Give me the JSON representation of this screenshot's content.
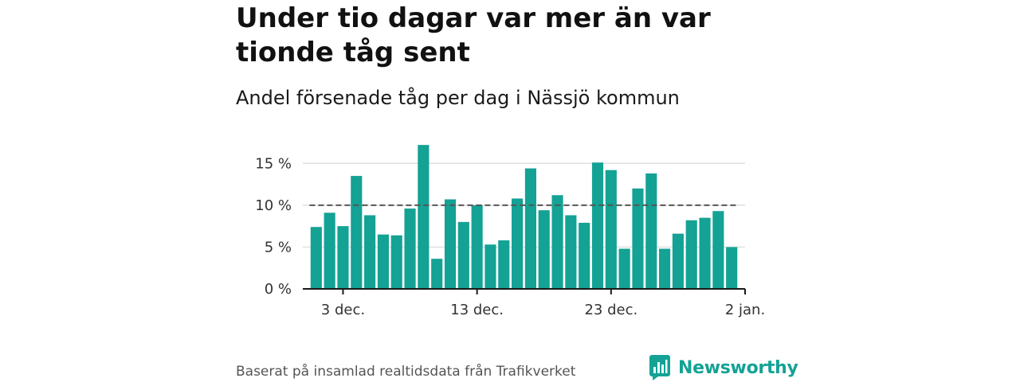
{
  "title": "Under tio dagar var mer än var tionde tåg sent",
  "subtitle": "Andel försenade tåg per dag i Nässjö kommun",
  "source": "Baserat på insamlad realtidsdata från Trafikverket",
  "brand": {
    "name": "Newsworthy",
    "icon": "newsworthy-logo-icon"
  },
  "colors": {
    "bar": "#14a295",
    "reference_line": "#555555",
    "grid": "#d9d9d9",
    "axis": "#1a1a1a",
    "brand": "#14a295"
  },
  "chart_data": {
    "type": "bar",
    "x": [
      "2021-12-01",
      "2021-12-02",
      "2021-12-03",
      "2021-12-04",
      "2021-12-05",
      "2021-12-06",
      "2021-12-07",
      "2021-12-08",
      "2021-12-09",
      "2021-12-10",
      "2021-12-11",
      "2021-12-12",
      "2021-12-13",
      "2021-12-14",
      "2021-12-15",
      "2021-12-16",
      "2021-12-17",
      "2021-12-18",
      "2021-12-19",
      "2021-12-20",
      "2021-12-21",
      "2021-12-22",
      "2021-12-23",
      "2021-12-24",
      "2021-12-25",
      "2021-12-26",
      "2021-12-27",
      "2021-12-28",
      "2021-12-29",
      "2021-12-30",
      "2021-12-31",
      "2022-01-01"
    ],
    "values": [
      7.4,
      9.1,
      7.5,
      13.5,
      8.8,
      6.5,
      6.4,
      9.6,
      17.2,
      3.6,
      10.7,
      8.0,
      10.0,
      5.3,
      5.8,
      10.8,
      14.4,
      9.4,
      11.2,
      8.8,
      7.9,
      15.1,
      14.2,
      4.8,
      12.0,
      13.8,
      4.8,
      6.6,
      8.2,
      8.5,
      9.3,
      5.0
    ],
    "reference_line": 10,
    "ylim": [
      0,
      17.5
    ],
    "yticks": [
      0,
      5,
      10,
      15
    ],
    "ytick_labels": [
      "0 %",
      "5 %",
      "10 %",
      "15 %"
    ],
    "xticks": [
      "2021-12-03",
      "2021-12-13",
      "2021-12-23",
      "2022-01-02"
    ],
    "xtick_labels": [
      "3 dec.",
      "13 dec.",
      "23 dec.",
      "2 jan."
    ],
    "xlim": [
      "2021-11-30",
      "2022-01-02"
    ],
    "grid": true,
    "xlabel": "",
    "ylabel": ""
  }
}
